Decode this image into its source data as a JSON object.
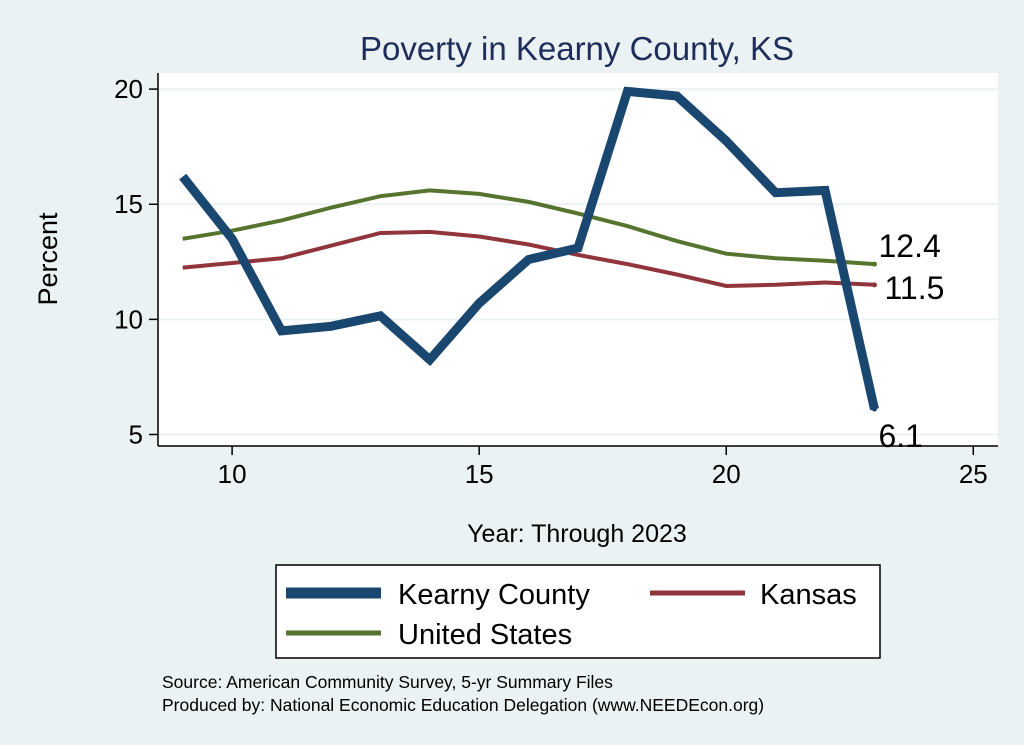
{
  "chart_data": {
    "type": "line",
    "title": "Poverty in Kearny County, KS",
    "xlabel": "Year: Through 2023",
    "ylabel": "Percent",
    "xlim": [
      8.5,
      25.5
    ],
    "ylim": [
      4.5,
      20.7
    ],
    "xticks": [
      10,
      15,
      20,
      25
    ],
    "yticks": [
      5,
      10,
      15,
      20
    ],
    "grid": true,
    "legend_position": "bottom",
    "series": [
      {
        "name": "Kearny County",
        "color": "#1a476f",
        "x": [
          9,
          10,
          11,
          12,
          13,
          14,
          15,
          16,
          17,
          18,
          19,
          20,
          21,
          22,
          23
        ],
        "values": [
          16.2,
          13.5,
          9.5,
          9.7,
          10.15,
          8.25,
          10.7,
          12.6,
          13.1,
          19.9,
          19.7,
          17.75,
          15.5,
          15.6,
          6.1
        ],
        "end_label": "6.1"
      },
      {
        "name": "Kansas",
        "color": "#90353b",
        "x": [
          9,
          10,
          11,
          12,
          13,
          14,
          15,
          16,
          17,
          18,
          19,
          20,
          21,
          22,
          23
        ],
        "values": [
          12.25,
          12.45,
          12.65,
          13.2,
          13.75,
          13.8,
          13.6,
          13.25,
          12.8,
          12.4,
          11.95,
          11.45,
          11.5,
          11.6,
          11.5
        ],
        "end_label": "11.5"
      },
      {
        "name": "United States",
        "color": "#55752f",
        "x": [
          9,
          10,
          11,
          12,
          13,
          14,
          15,
          16,
          17,
          18,
          19,
          20,
          21,
          22,
          23
        ],
        "values": [
          13.5,
          13.85,
          14.3,
          14.85,
          15.35,
          15.6,
          15.45,
          15.1,
          14.6,
          14.05,
          13.4,
          12.85,
          12.65,
          12.55,
          12.4
        ],
        "end_label": "12.4"
      }
    ]
  },
  "legend": {
    "items": [
      "Kearny County",
      "Kansas",
      "United States"
    ]
  },
  "footer": {
    "source": "Source: American Community Survey, 5-yr Summary Files",
    "produced": "Produced by: National Economic Education Delegation (www.NEEDEcon.org)"
  }
}
